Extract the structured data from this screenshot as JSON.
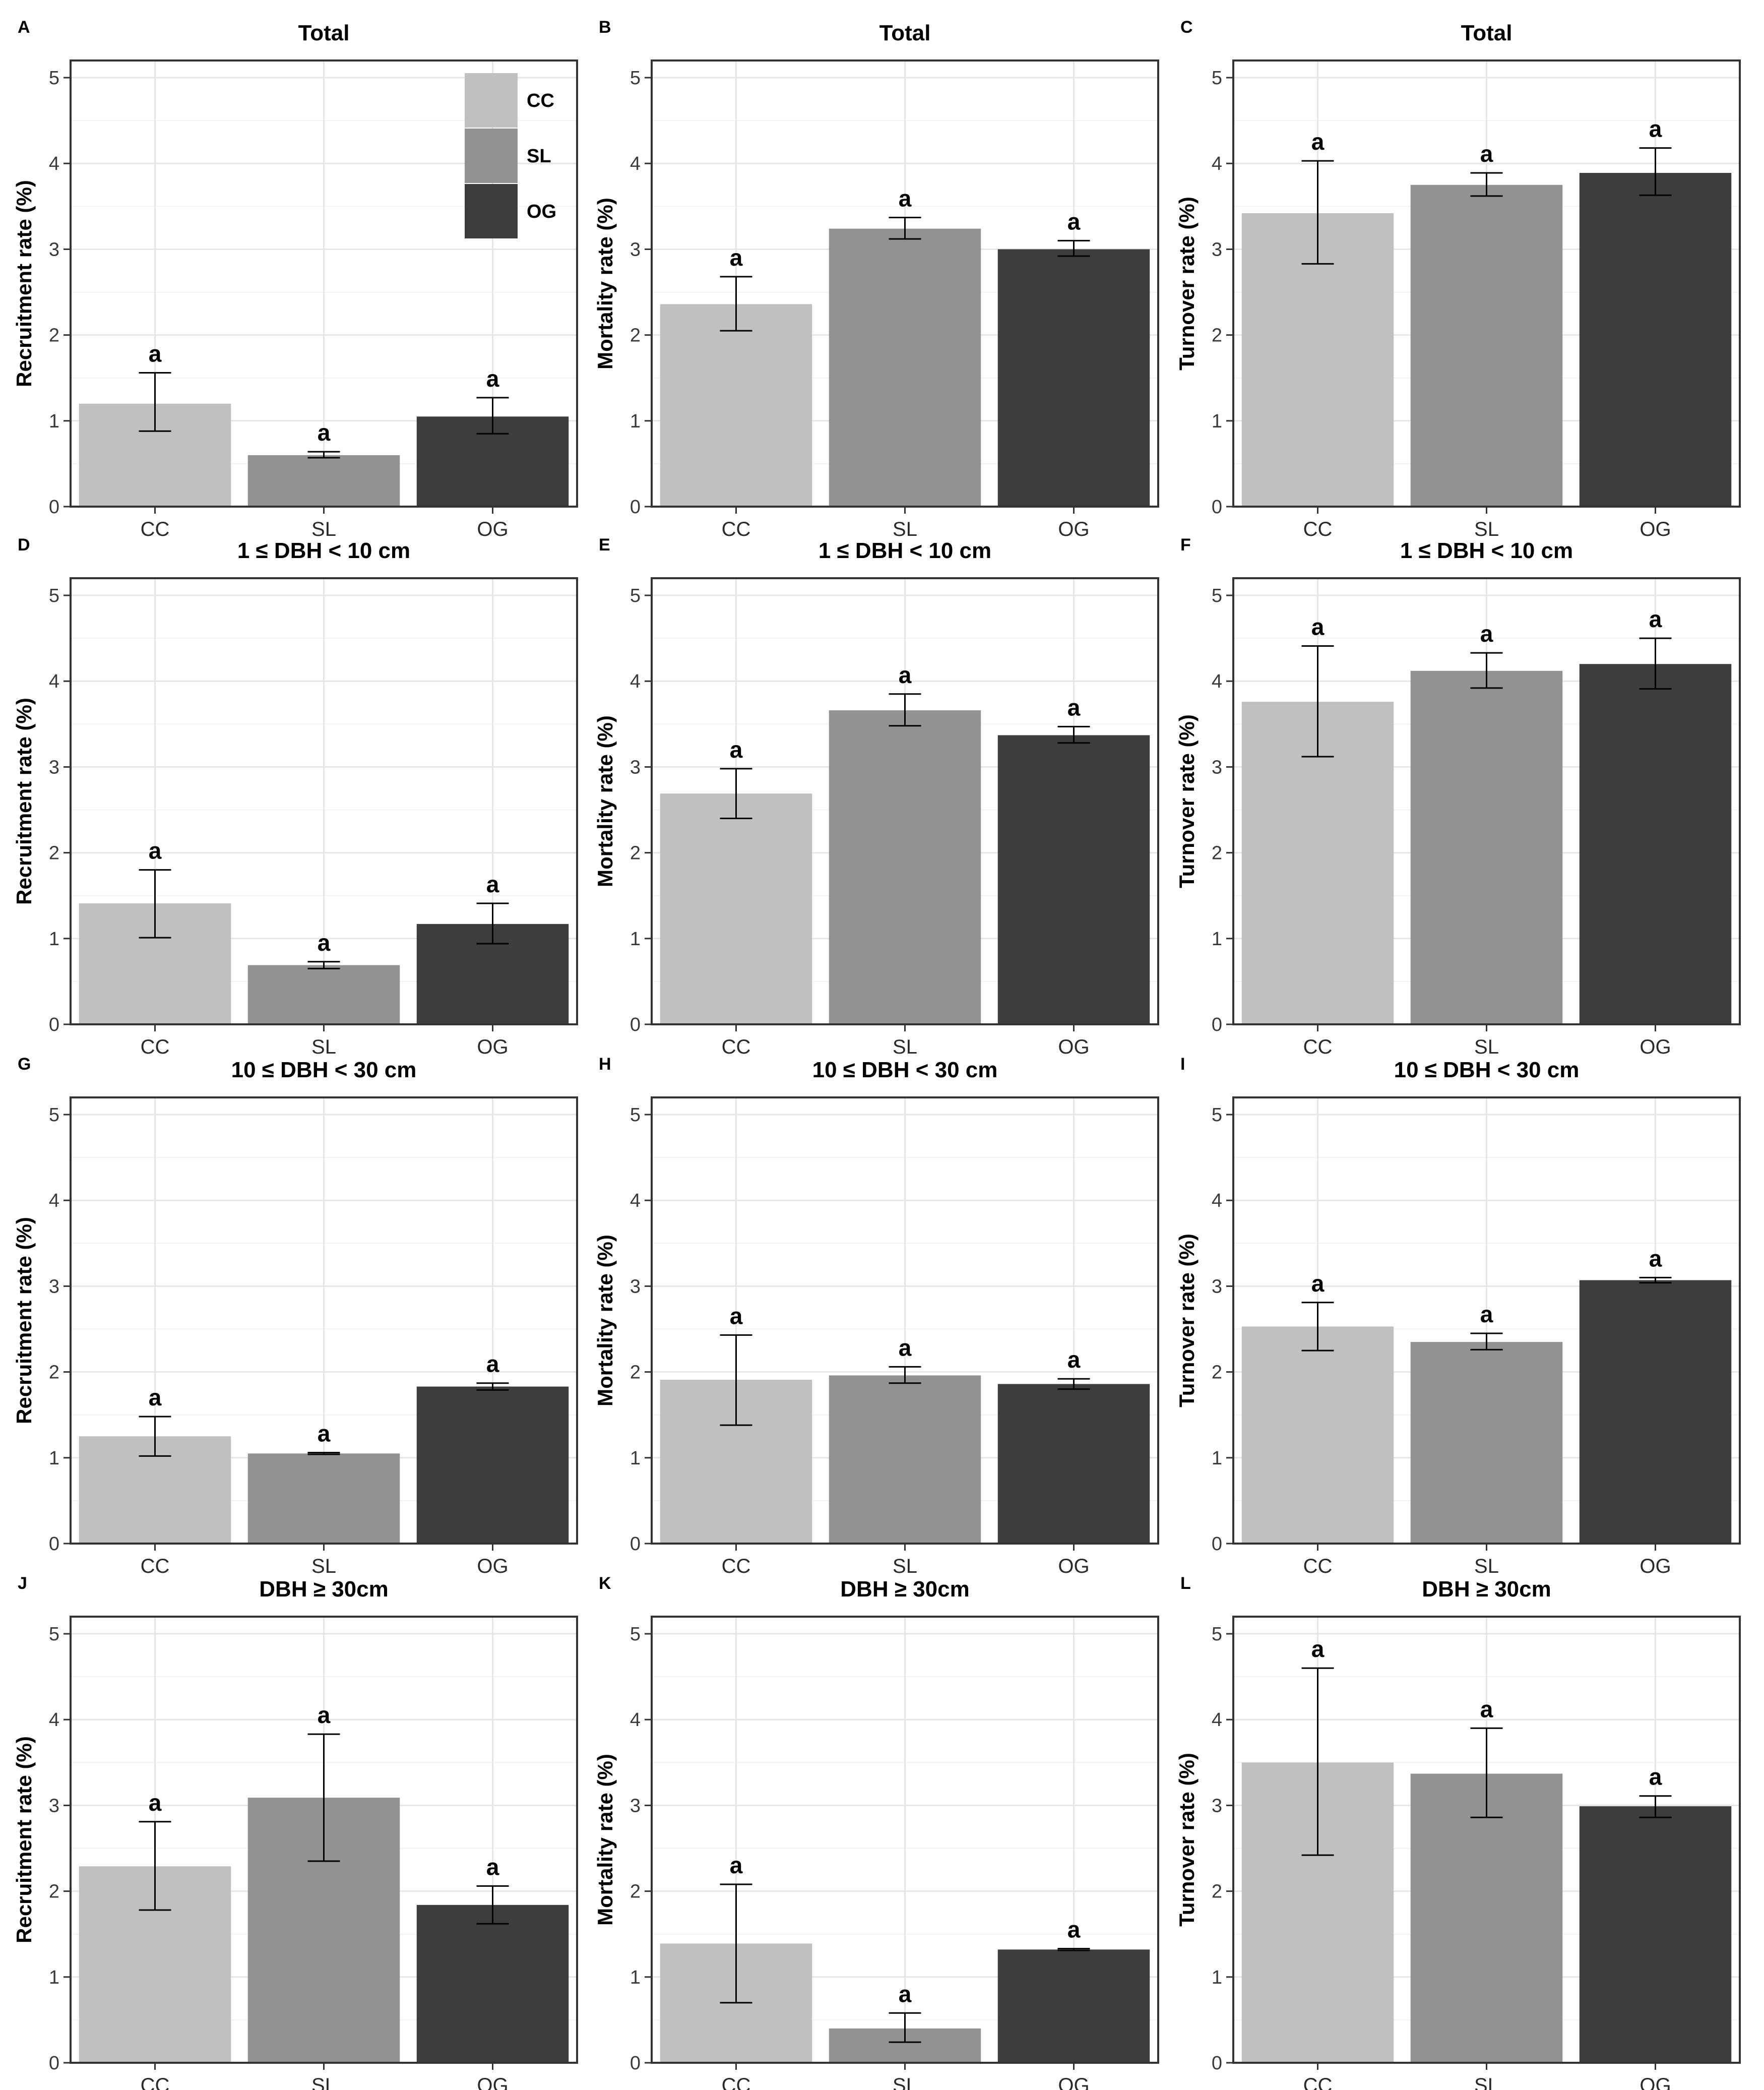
{
  "legend": {
    "title": "",
    "entries": [
      {
        "label": "CC",
        "color": "#c0c0c0"
      },
      {
        "label": "SL",
        "color": "#929292"
      },
      {
        "label": "OG",
        "color": "#3d3d3d"
      }
    ]
  },
  "chart_data": [
    {
      "letter": "A",
      "type": "bar",
      "title": "Total",
      "ylabel": "Recruitment rate (%)",
      "categories": [
        "CC",
        "SL",
        "OG"
      ],
      "values": [
        1.2,
        0.6,
        1.05
      ],
      "err_low": [
        0.88,
        0.57,
        0.85
      ],
      "err_high": [
        1.56,
        0.64,
        1.27
      ],
      "sig": [
        "a",
        "a",
        "a"
      ],
      "ylim": [
        0,
        5.2
      ],
      "yticks": [
        "0",
        "1",
        "2",
        "3",
        "4",
        "5"
      ]
    },
    {
      "letter": "B",
      "type": "bar",
      "title": "Total",
      "ylabel": "Mortality rate (%)",
      "categories": [
        "CC",
        "SL",
        "OG"
      ],
      "values": [
        2.36,
        3.24,
        3.0
      ],
      "err_low": [
        2.05,
        3.12,
        2.92
      ],
      "err_high": [
        2.68,
        3.37,
        3.1
      ],
      "sig": [
        "a",
        "a",
        "a"
      ],
      "ylim": [
        0,
        5.2
      ],
      "yticks": [
        "0",
        "1",
        "2",
        "3",
        "4",
        "5"
      ]
    },
    {
      "letter": "C",
      "type": "bar",
      "title": "Total",
      "ylabel": "Turnover rate (%)",
      "categories": [
        "CC",
        "SL",
        "OG"
      ],
      "values": [
        3.42,
        3.75,
        3.89
      ],
      "err_low": [
        2.83,
        3.62,
        3.63
      ],
      "err_high": [
        4.03,
        3.89,
        4.18
      ],
      "sig": [
        "a",
        "a",
        "a"
      ],
      "ylim": [
        0,
        5.2
      ],
      "yticks": [
        "0",
        "1",
        "2",
        "3",
        "4",
        "5"
      ]
    },
    {
      "letter": "D",
      "type": "bar",
      "title": "1 ≤ DBH < 10 cm",
      "ylabel": "Recruitment rate (%)",
      "categories": [
        "CC",
        "SL",
        "OG"
      ],
      "values": [
        1.41,
        0.69,
        1.17
      ],
      "err_low": [
        1.01,
        0.65,
        0.94
      ],
      "err_high": [
        1.8,
        0.73,
        1.41
      ],
      "sig": [
        "a",
        "a",
        "a"
      ],
      "ylim": [
        0,
        5.2
      ],
      "yticks": [
        "0",
        "1",
        "2",
        "3",
        "4",
        "5"
      ]
    },
    {
      "letter": "E",
      "type": "bar",
      "title": "1 ≤ DBH < 10 cm",
      "ylabel": "Mortality rate (%)",
      "categories": [
        "CC",
        "SL",
        "OG"
      ],
      "values": [
        2.69,
        3.66,
        3.37
      ],
      "err_low": [
        2.4,
        3.48,
        3.28
      ],
      "err_high": [
        2.98,
        3.85,
        3.47
      ],
      "sig": [
        "a",
        "a",
        "a"
      ],
      "ylim": [
        0,
        5.2
      ],
      "yticks": [
        "0",
        "1",
        "2",
        "3",
        "4",
        "5"
      ]
    },
    {
      "letter": "F",
      "type": "bar",
      "title": "1 ≤ DBH < 10 cm",
      "ylabel": "Turnover rate (%)",
      "categories": [
        "CC",
        "SL",
        "OG"
      ],
      "values": [
        3.76,
        4.12,
        4.2
      ],
      "err_low": [
        3.12,
        3.92,
        3.91
      ],
      "err_high": [
        4.41,
        4.33,
        4.5
      ],
      "sig": [
        "a",
        "a",
        "a"
      ],
      "ylim": [
        0,
        5.2
      ],
      "yticks": [
        "0",
        "1",
        "2",
        "3",
        "4",
        "5"
      ]
    },
    {
      "letter": "G",
      "type": "bar",
      "title": "10 ≤ DBH < 30 cm",
      "ylabel": "Recruitment rate (%)",
      "categories": [
        "CC",
        "SL",
        "OG"
      ],
      "values": [
        1.25,
        1.05,
        1.83
      ],
      "err_low": [
        1.02,
        1.04,
        1.79
      ],
      "err_high": [
        1.48,
        1.06,
        1.87
      ],
      "sig": [
        "a",
        "a",
        "a"
      ],
      "ylim": [
        0,
        5.2
      ],
      "yticks": [
        "0",
        "1",
        "2",
        "3",
        "4",
        "5"
      ]
    },
    {
      "letter": "H",
      "type": "bar",
      "title": "10 ≤ DBH < 30 cm",
      "ylabel": "Mortality rate (%)",
      "categories": [
        "CC",
        "SL",
        "OG"
      ],
      "values": [
        1.91,
        1.96,
        1.86
      ],
      "err_low": [
        1.38,
        1.87,
        1.8
      ],
      "err_high": [
        2.43,
        2.06,
        1.92
      ],
      "sig": [
        "a",
        "a",
        "a"
      ],
      "ylim": [
        0,
        5.2
      ],
      "yticks": [
        "0",
        "1",
        "2",
        "3",
        "4",
        "5"
      ]
    },
    {
      "letter": "I",
      "type": "bar",
      "title": "10 ≤ DBH < 30 cm",
      "ylabel": "Turnover rate (%)",
      "categories": [
        "CC",
        "SL",
        "OG"
      ],
      "values": [
        2.53,
        2.35,
        3.07
      ],
      "err_low": [
        2.25,
        2.26,
        3.04
      ],
      "err_high": [
        2.81,
        2.45,
        3.1
      ],
      "sig": [
        "a",
        "a",
        "a"
      ],
      "ylim": [
        0,
        5.2
      ],
      "yticks": [
        "0",
        "1",
        "2",
        "3",
        "4",
        "5"
      ]
    },
    {
      "letter": "J",
      "type": "bar",
      "title": "DBH ≥ 30cm",
      "ylabel": "Recruitment rate (%)",
      "categories": [
        "CC",
        "SL",
        "OG"
      ],
      "values": [
        2.29,
        3.09,
        1.84
      ],
      "err_low": [
        1.78,
        2.35,
        1.62
      ],
      "err_high": [
        2.81,
        3.83,
        2.06
      ],
      "sig": [
        "a",
        "a",
        "a"
      ],
      "ylim": [
        0,
        5.2
      ],
      "yticks": [
        "0",
        "1",
        "2",
        "3",
        "4",
        "5"
      ]
    },
    {
      "letter": "K",
      "type": "bar",
      "title": "DBH ≥ 30cm",
      "ylabel": "Mortality rate (%)",
      "categories": [
        "CC",
        "SL",
        "OG"
      ],
      "values": [
        1.39,
        0.4,
        1.32
      ],
      "err_low": [
        0.7,
        0.24,
        1.31
      ],
      "err_high": [
        2.08,
        0.58,
        1.33
      ],
      "sig": [
        "a",
        "a",
        "a"
      ],
      "ylim": [
        0,
        5.2
      ],
      "yticks": [
        "0",
        "1",
        "2",
        "3",
        "4",
        "5"
      ]
    },
    {
      "letter": "L",
      "type": "bar",
      "title": "DBH ≥ 30cm",
      "ylabel": "Turnover rate (%)",
      "categories": [
        "CC",
        "SL",
        "OG"
      ],
      "values": [
        3.5,
        3.37,
        2.99
      ],
      "err_low": [
        2.42,
        2.86,
        2.86
      ],
      "err_high": [
        4.6,
        3.9,
        3.11
      ],
      "sig": [
        "a",
        "a",
        "a"
      ],
      "ylim": [
        0,
        5.2
      ],
      "yticks": [
        "0",
        "1",
        "2",
        "3",
        "4",
        "5"
      ]
    }
  ]
}
